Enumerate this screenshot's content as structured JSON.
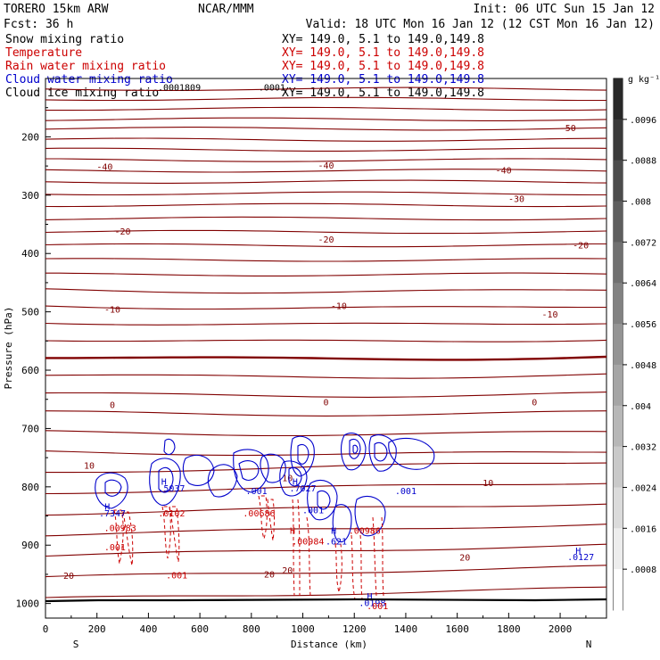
{
  "header": {
    "model": "TORERO  15km ARW",
    "source": "NCAR/MMM",
    "init": "Init: 06 UTC Sun 15 Jan 12",
    "fcst": "Fcst:   36 h",
    "valid": "Valid: 18 UTC Mon 16 Jan 12 (12 CST Mon 16 Jan 12)"
  },
  "fields": [
    {
      "name": "Snow mixing ratio",
      "xy": "XY= 149.0,  5.1 to 149.0,149.8",
      "color": "#000000"
    },
    {
      "name": "Temperature",
      "xy": "XY= 149.0,  5.1 to 149.0,149.8",
      "color": "#cc0000"
    },
    {
      "name": "Rain water mixing ratio",
      "xy": "XY= 149.0,  5.1 to 149.0,149.8",
      "color": "#cc0000"
    },
    {
      "name": "Cloud water mixing ratio",
      "xy": "XY= 149.0,  5.1 to 149.0,149.8",
      "color": "#0000cc"
    },
    {
      "name": "Cloud ice mixing ratio",
      "xy": "XY= 149.0,  5.1 to 149.0,149.8",
      "color": "#000000"
    }
  ],
  "colorbar": {
    "units": "g kg⁻¹",
    "ticks": [
      ".0096",
      ".0088",
      ".008",
      ".0072",
      ".0064",
      ".0056",
      ".0048",
      ".004",
      ".0032",
      ".0024",
      ".0016",
      ".0008"
    ],
    "tick_values": [
      0.0096,
      0.0088,
      0.008,
      0.0072,
      0.0064,
      0.0056,
      0.0048,
      0.004,
      0.0032,
      0.0024,
      0.0016,
      0.0008
    ]
  },
  "chart_data": {
    "type": "contour cross-section",
    "xlabel": "Distance (km)",
    "ylabel": "Pressure (hPa)",
    "xlim": [
      0,
      2180
    ],
    "ylim": [
      1025,
      100
    ],
    "x_ticks": [
      0,
      200,
      400,
      600,
      800,
      1000,
      1200,
      1400,
      1600,
      1800,
      2000
    ],
    "y_ticks": [
      200,
      300,
      400,
      500,
      600,
      700,
      800,
      900,
      1000
    ],
    "left_end": "S",
    "right_end": "N",
    "temperature_contours": [
      {
        "label": "-50",
        "x": 2030,
        "p": 186
      },
      {
        "label": "-40",
        "x": 230,
        "p": 252
      },
      {
        "label": "-40",
        "x": 1090,
        "p": 250
      },
      {
        "label": "-40",
        "x": 1780,
        "p": 258
      },
      {
        "label": "-30",
        "x": 1830,
        "p": 307
      },
      {
        "label": "-20",
        "x": 300,
        "p": 363
      },
      {
        "label": "-20",
        "x": 1090,
        "p": 377
      },
      {
        "label": "-20",
        "x": 2080,
        "p": 387
      },
      {
        "label": "-10",
        "x": 260,
        "p": 497
      },
      {
        "label": "-10",
        "x": 1140,
        "p": 491
      },
      {
        "label": "-10",
        "x": 1960,
        "p": 505
      },
      {
        "label": "0",
        "x": 260,
        "p": 660
      },
      {
        "label": "0",
        "x": 1090,
        "p": 656
      },
      {
        "label": "0",
        "x": 1900,
        "p": 656
      },
      {
        "label": "10",
        "x": 170,
        "p": 764
      },
      {
        "label": "10",
        "x": 940,
        "p": 786
      },
      {
        "label": "10",
        "x": 1720,
        "p": 794
      },
      {
        "label": "20",
        "x": 1630,
        "p": 922
      },
      {
        "label": "20",
        "x": 940,
        "p": 944
      },
      {
        "label": "20",
        "x": 870,
        "p": 951
      },
      {
        "label": "20",
        "x": 90,
        "p": 953
      }
    ],
    "annotations": [
      {
        "text": ".0001809",
        "x": 520,
        "p": 116,
        "color": "#000000"
      },
      {
        "text": ".0001",
        "x": 880,
        "p": 116,
        "color": "#000000"
      },
      {
        "text": "H",
        "x": 460,
        "p": 792,
        "color": "#0000cc"
      },
      {
        "text": ".5037",
        "x": 490,
        "p": 803,
        "color": "#0000cc"
      },
      {
        "text": "H",
        "x": 970,
        "p": 792,
        "color": "#0000cc"
      },
      {
        "text": ".7027",
        "x": 1000,
        "p": 803,
        "color": "#0000cc"
      },
      {
        "text": ".001",
        "x": 820,
        "p": 808,
        "color": "#0000cc"
      },
      {
        "text": ".001",
        "x": 1400,
        "p": 808,
        "color": "#0000cc"
      },
      {
        "text": "H",
        "x": 240,
        "p": 835,
        "color": "#0000cc"
      },
      {
        "text": ".7347",
        "x": 260,
        "p": 846,
        "color": "#0000cc"
      },
      {
        "text": ".0102",
        "x": 490,
        "p": 846,
        "color": "#cc0000"
      },
      {
        "text": ".00686",
        "x": 830,
        "p": 846,
        "color": "#cc0000"
      },
      {
        "text": ".001",
        "x": 1040,
        "p": 841,
        "color": "#0000cc"
      },
      {
        "text": "H",
        "x": 960,
        "p": 876,
        "color": "#cc0000"
      },
      {
        "text": "H",
        "x": 1120,
        "p": 876,
        "color": "#0000cc"
      },
      {
        "text": ".00986",
        "x": 1240,
        "p": 876,
        "color": "#cc0000"
      },
      {
        "text": ".00983",
        "x": 290,
        "p": 871,
        "color": "#cc0000"
      },
      {
        "text": ".621",
        "x": 1130,
        "p": 894,
        "color": "#0000cc"
      },
      {
        "text": ".00984",
        "x": 1020,
        "p": 894,
        "color": "#cc0000"
      },
      {
        "text": ".001",
        "x": 270,
        "p": 904,
        "color": "#cc0000"
      },
      {
        "text": ".001",
        "x": 510,
        "p": 952,
        "color": "#cc0000"
      },
      {
        "text": "H",
        "x": 2070,
        "p": 910,
        "color": "#0000cc"
      },
      {
        "text": ".0127",
        "x": 2080,
        "p": 921,
        "color": "#0000cc"
      },
      {
        "text": "H",
        "x": 1260,
        "p": 988,
        "color": "#0000cc"
      },
      {
        "text": ".0198",
        "x": 1270,
        "p": 1000,
        "color": "#0000cc"
      },
      {
        "text": ".001",
        "x": 1290,
        "p": 1005,
        "color": "#cc0000"
      }
    ]
  }
}
